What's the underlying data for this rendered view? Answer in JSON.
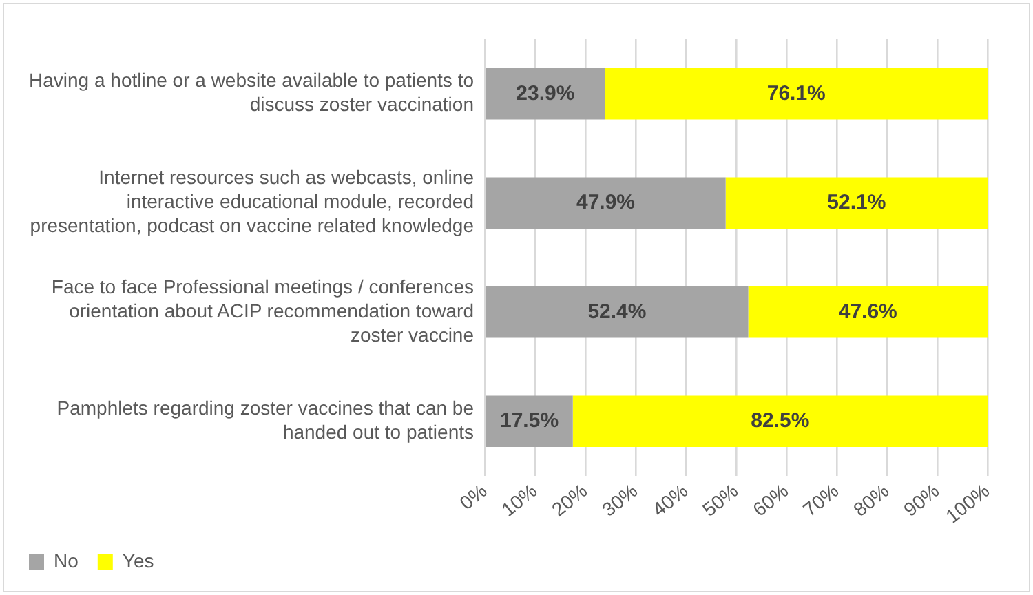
{
  "chart_data": {
    "type": "bar",
    "orientation": "horizontal",
    "stacked": true,
    "categories": [
      "Having a hotline or a website available to patients to discuss zoster vaccination",
      "Internet resources such as webcasts, online interactive educational module, recorded presentation, podcast on vaccine related knowledge",
      "Face to face Professional meetings / conferences orientation about ACIP recommendation toward zoster vaccine",
      "Pamphlets regarding zoster vaccines that can be handed out to patients"
    ],
    "series": [
      {
        "name": "No",
        "color": "#a5a5a5",
        "values": [
          23.9,
          47.9,
          52.4,
          17.5
        ],
        "value_labels": [
          "23.9%",
          "47.9%",
          "52.4%",
          "17.5%"
        ]
      },
      {
        "name": "Yes",
        "color": "#ffff00",
        "values": [
          76.1,
          52.1,
          47.6,
          82.5
        ],
        "value_labels": [
          "76.1%",
          "52.1%",
          "47.6%",
          "82.5%"
        ]
      }
    ],
    "xlim": [
      0,
      100
    ],
    "xticks": [
      {
        "value": 0,
        "label": "0%"
      },
      {
        "value": 10,
        "label": "10%"
      },
      {
        "value": 20,
        "label": "20%"
      },
      {
        "value": 30,
        "label": "30%"
      },
      {
        "value": 40,
        "label": "40%"
      },
      {
        "value": 50,
        "label": "50%"
      },
      {
        "value": 60,
        "label": "60%"
      },
      {
        "value": 70,
        "label": "70%"
      },
      {
        "value": 80,
        "label": "80%"
      },
      {
        "value": 90,
        "label": "90%"
      },
      {
        "value": 100,
        "label": "100%"
      }
    ],
    "grid": "x",
    "legend": "bottom"
  }
}
